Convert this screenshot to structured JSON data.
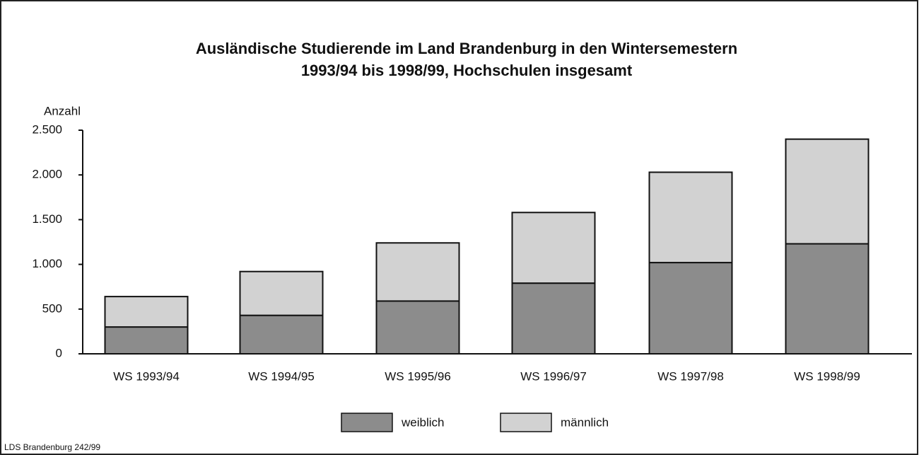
{
  "chart_data": {
    "type": "stacked_bar",
    "title": [
      "Ausländische Studierende im Land Brandenburg in den Wintersemestern",
      "1993/94 bis 1998/99, Hochschulen insgesamt"
    ],
    "y_label": "Anzahl",
    "categories": [
      "WS 1993/94",
      "WS 1994/95",
      "WS 1995/96",
      "WS 1996/97",
      "WS 1997/98",
      "WS 1998/99"
    ],
    "series": [
      {
        "name": "weiblich",
        "color": "#8c8c8c",
        "values": [
          300,
          430,
          590,
          790,
          1020,
          1230
        ]
      },
      {
        "name": "männlich",
        "color": "#d2d2d2",
        "values": [
          340,
          490,
          650,
          790,
          1010,
          1170
        ]
      }
    ],
    "ylim": [
      0,
      2500
    ],
    "yticks": [
      0,
      500,
      {
        "value": 1000,
        "label": "1.000"
      },
      {
        "value": 1500,
        "label": "1.500"
      },
      {
        "value": 2000,
        "label": "2.000"
      },
      {
        "value": 2500,
        "label": "2.500"
      }
    ],
    "source": "LDS Brandenburg 242/99"
  }
}
